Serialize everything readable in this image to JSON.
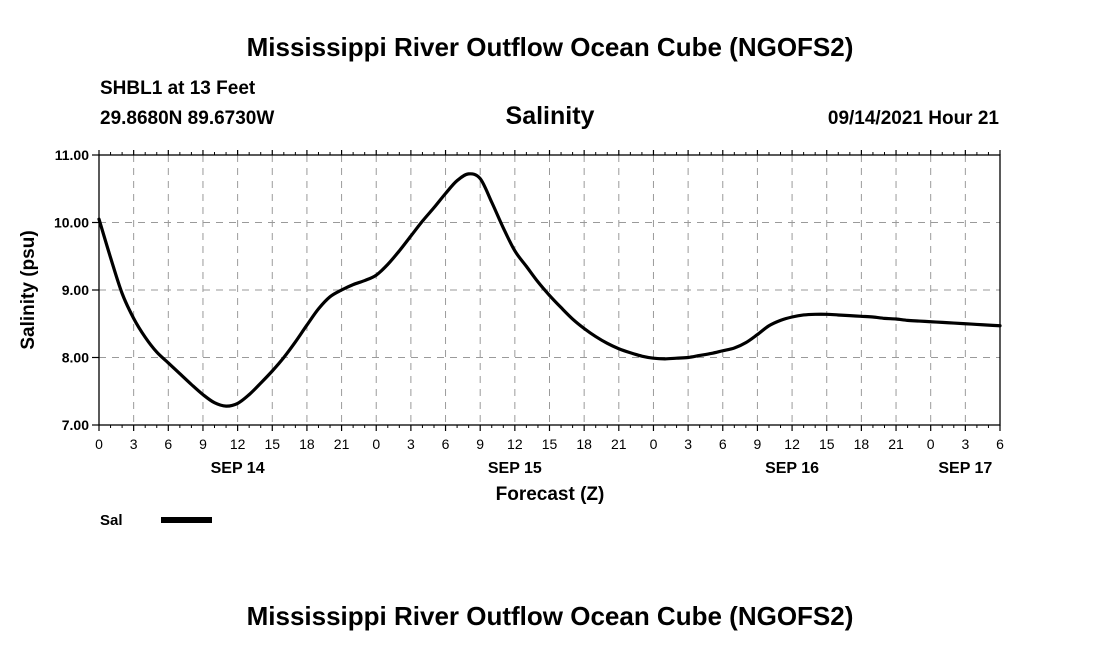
{
  "page": {
    "title": "Mississippi River Outflow Ocean Cube (NGOFS2)",
    "footer_title": "Mississippi River Outflow Ocean Cube (NGOFS2)"
  },
  "station": {
    "name_line": "SHBL1 at 13 Feet",
    "coords_line": "29.8680N  89.6730W",
    "timestamp": "09/14/2021 Hour 21"
  },
  "chart_data": {
    "type": "line",
    "title": "Salinity",
    "xlabel": "Forecast (Z)",
    "ylabel": "Salinity (psu)",
    "ylim": [
      7.0,
      11.0
    ],
    "xlim": [
      0,
      78
    ],
    "x_unit": "hours since SEP 14 00Z",
    "grid": true,
    "y_ticks": [
      {
        "value": 7.0,
        "label": "7.00"
      },
      {
        "value": 8.0,
        "label": "8.00"
      },
      {
        "value": 9.0,
        "label": "9.00"
      },
      {
        "value": 10.0,
        "label": "10.00"
      },
      {
        "value": 11.0,
        "label": "11.00"
      }
    ],
    "x_ticks": [
      {
        "hour": 0,
        "label": "0"
      },
      {
        "hour": 3,
        "label": "3"
      },
      {
        "hour": 6,
        "label": "6"
      },
      {
        "hour": 9,
        "label": "9"
      },
      {
        "hour": 12,
        "label": "12"
      },
      {
        "hour": 15,
        "label": "15"
      },
      {
        "hour": 18,
        "label": "18"
      },
      {
        "hour": 21,
        "label": "21"
      },
      {
        "hour": 24,
        "label": "0"
      },
      {
        "hour": 27,
        "label": "3"
      },
      {
        "hour": 30,
        "label": "6"
      },
      {
        "hour": 33,
        "label": "9"
      },
      {
        "hour": 36,
        "label": "12"
      },
      {
        "hour": 39,
        "label": "15"
      },
      {
        "hour": 42,
        "label": "18"
      },
      {
        "hour": 45,
        "label": "21"
      },
      {
        "hour": 48,
        "label": "0"
      },
      {
        "hour": 51,
        "label": "3"
      },
      {
        "hour": 54,
        "label": "6"
      },
      {
        "hour": 57,
        "label": "9"
      },
      {
        "hour": 60,
        "label": "12"
      },
      {
        "hour": 63,
        "label": "15"
      },
      {
        "hour": 66,
        "label": "18"
      },
      {
        "hour": 69,
        "label": "21"
      },
      {
        "hour": 72,
        "label": "0"
      },
      {
        "hour": 75,
        "label": "3"
      },
      {
        "hour": 78,
        "label": "6"
      }
    ],
    "date_labels": [
      {
        "hour": 12,
        "label": "SEP 14"
      },
      {
        "hour": 36,
        "label": "SEP 15"
      },
      {
        "hour": 60,
        "label": "SEP 16"
      },
      {
        "hour": 75,
        "label": "SEP 17"
      }
    ],
    "series": [
      {
        "name": "Sal",
        "x": [
          0,
          1,
          2,
          3,
          4,
          5,
          6,
          7,
          8,
          9,
          10,
          11,
          12,
          13,
          14,
          15,
          16,
          17,
          18,
          19,
          20,
          21,
          22,
          23,
          24,
          25,
          26,
          27,
          28,
          29,
          30,
          31,
          32,
          33,
          34,
          35,
          36,
          37,
          38,
          39,
          40,
          41,
          42,
          43,
          44,
          45,
          46,
          47,
          48,
          49,
          50,
          51,
          52,
          53,
          54,
          55,
          56,
          57,
          58,
          59,
          60,
          61,
          62,
          63,
          64,
          65,
          66,
          67,
          68,
          69,
          70,
          71,
          72,
          73,
          74,
          75,
          76,
          77,
          78
        ],
        "values": [
          10.05,
          9.48,
          8.95,
          8.58,
          8.3,
          8.08,
          7.92,
          7.76,
          7.6,
          7.45,
          7.33,
          7.28,
          7.32,
          7.45,
          7.62,
          7.8,
          8.0,
          8.23,
          8.48,
          8.72,
          8.9,
          9.0,
          9.08,
          9.14,
          9.22,
          9.38,
          9.58,
          9.8,
          10.02,
          10.22,
          10.43,
          10.62,
          10.72,
          10.65,
          10.3,
          9.92,
          9.58,
          9.35,
          9.12,
          8.92,
          8.74,
          8.57,
          8.43,
          8.31,
          8.21,
          8.13,
          8.07,
          8.02,
          7.99,
          7.98,
          7.99,
          8.0,
          8.03,
          8.06,
          8.1,
          8.14,
          8.22,
          8.34,
          8.47,
          8.55,
          8.6,
          8.63,
          8.64,
          8.64,
          8.63,
          8.62,
          8.61,
          8.6,
          8.58,
          8.57,
          8.55,
          8.54,
          8.53,
          8.52,
          8.51,
          8.5,
          8.49,
          8.48,
          8.47
        ],
        "color": "#000000"
      }
    ]
  }
}
